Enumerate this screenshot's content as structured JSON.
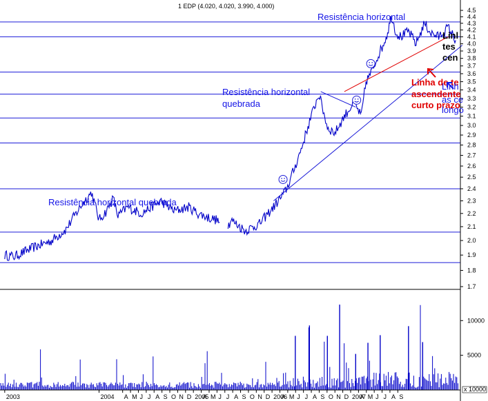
{
  "chart_data": {
    "type": "line",
    "title": "1 EDP (4.020, 4.020, 3.990, 4.000)",
    "y_scale": "log",
    "ylim": [
      1.7,
      4.6
    ],
    "y_ticks": [
      "4.5",
      "4.4",
      "4.3",
      "4.2",
      "4.1",
      "4.0",
      "3.9",
      "3.8",
      "3.7",
      "3.6",
      "3.5",
      "3.4",
      "3.3",
      "3.2",
      "3.1",
      "3.0",
      "2.9",
      "2.8",
      "2.7",
      "2.6",
      "2.5",
      "2.4",
      "2.3",
      "2.2",
      "2.1",
      "2.0",
      "1.9",
      "1.8",
      "1.7"
    ],
    "x_tick_labels": [
      "2003",
      "2004",
      "A",
      "M",
      "J",
      "J",
      "A",
      "S",
      "O",
      "N",
      "D",
      "2005",
      "A",
      "M",
      "J",
      "J",
      "A",
      "S",
      "O",
      "N",
      "D",
      "2006",
      "A",
      "M",
      "J",
      "J",
      "A",
      "S",
      "O",
      "N",
      "D",
      "2007",
      "A",
      "M",
      "J",
      "J",
      "A",
      "S"
    ],
    "grid": false,
    "horizontal_levels": [
      4.32,
      4.1,
      3.62,
      3.35,
      3.08,
      2.82,
      2.4,
      2.06,
      1.85
    ],
    "price": {
      "name": "EDP",
      "x": [
        2003.0,
        2003.1,
        2003.3,
        2003.5,
        2003.65,
        2003.8,
        2003.92,
        2004.0,
        2004.08,
        2004.15,
        2004.2,
        2004.3,
        2004.45,
        2004.55,
        2004.65,
        2004.8,
        2004.95,
        2005.05,
        2005.15,
        2005.25,
        2005.35,
        2005.4,
        2005.55,
        2005.7,
        2005.85,
        2005.95,
        2006.0,
        2006.08,
        2006.15,
        2006.25,
        2006.33,
        2006.42,
        2006.5,
        2006.6,
        2006.7,
        2006.78,
        2006.83,
        2006.9,
        2006.96,
        2007.0,
        2007.05,
        2007.1,
        2007.15,
        2007.2,
        2007.28,
        2007.36,
        2007.45,
        2007.52,
        2007.6,
        2007.7,
        2007.78
      ],
      "y": [
        1.9,
        1.89,
        1.95,
        2.0,
        2.08,
        2.25,
        2.37,
        2.15,
        2.22,
        2.32,
        2.18,
        2.25,
        2.2,
        2.25,
        2.3,
        2.22,
        2.25,
        2.2,
        2.17,
        2.15,
        2.08,
        2.15,
        2.07,
        2.12,
        2.25,
        2.35,
        2.42,
        2.6,
        2.78,
        3.1,
        3.35,
        2.98,
        2.92,
        3.1,
        3.25,
        3.1,
        3.5,
        3.65,
        3.85,
        3.95,
        4.12,
        4.41,
        4.15,
        4.1,
        4.18,
        4.0,
        4.3,
        4.15,
        4.1,
        4.24,
        4.05
      ]
    },
    "volume": {
      "name": "Volume",
      "ylim": [
        0,
        14000
      ],
      "y_ticks": [
        "10000",
        "5000"
      ],
      "axis_label": "x 10000"
    },
    "trendlines": [
      {
        "x": [
          2005.85,
          2007.85
        ],
        "y": [
          2.3,
          3.98
        ]
      },
      {
        "x": [
          2006.6,
          2007.7
        ],
        "y": [
          3.38,
          4.1
        ]
      },
      {
        "x": [
          2006.35,
          2006.72
        ],
        "y": [
          3.38,
          3.2
        ]
      }
    ],
    "annotations": {
      "resist_top": "Resistência horizontal",
      "resist_mid_1": "Resistência horizontal",
      "resist_mid_2": "quebrada",
      "resist_low": "Resistência horizontal quebrada",
      "red_line1": "Linha de te",
      "red_line2": "ascendente",
      "red_line3": "curto prazo",
      "blue_line1": "Linh",
      "blue_line2": "as ce",
      "blue_line3": "longo",
      "black_line1": "Linl",
      "black_line2": "tes",
      "black_line3": "cen"
    },
    "colors": {
      "price": "#0000c8",
      "trend": "#1a1ad8",
      "level": "#1a1ad8",
      "red_trend": "#e00000",
      "annotation": "#1414e6",
      "red_annotation": "#e00000",
      "volume": "#0000c8"
    }
  }
}
